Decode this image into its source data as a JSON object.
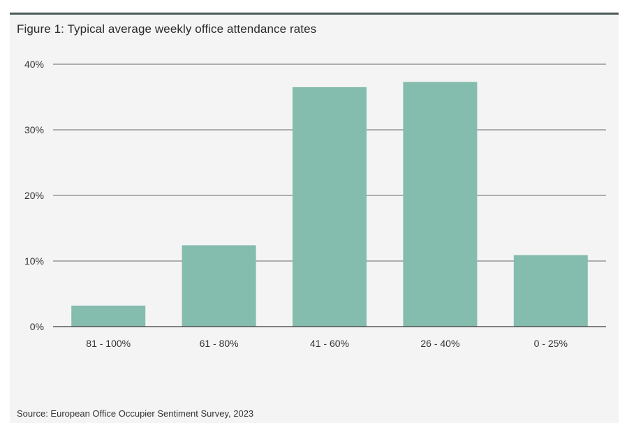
{
  "chart_data": {
    "type": "bar",
    "title": "Figure 1: Typical average weekly office attendance rates",
    "source": "Source: European Office Occupier Sentiment Survey, 2023",
    "categories": [
      "81 - 100%",
      "61 - 80%",
      "41 - 60%",
      "26 - 40%",
      "0 - 25%"
    ],
    "values": [
      3.2,
      12.4,
      36.5,
      37.3,
      10.9
    ],
    "ylim": [
      0,
      40
    ],
    "yticks": [
      0,
      10,
      20,
      30,
      40
    ],
    "ytick_labels": [
      "0%",
      "10%",
      "20%",
      "30%",
      "40%"
    ],
    "grid": true,
    "bar_color": "#84bcae",
    "grid_color": "#3a3a3a"
  }
}
